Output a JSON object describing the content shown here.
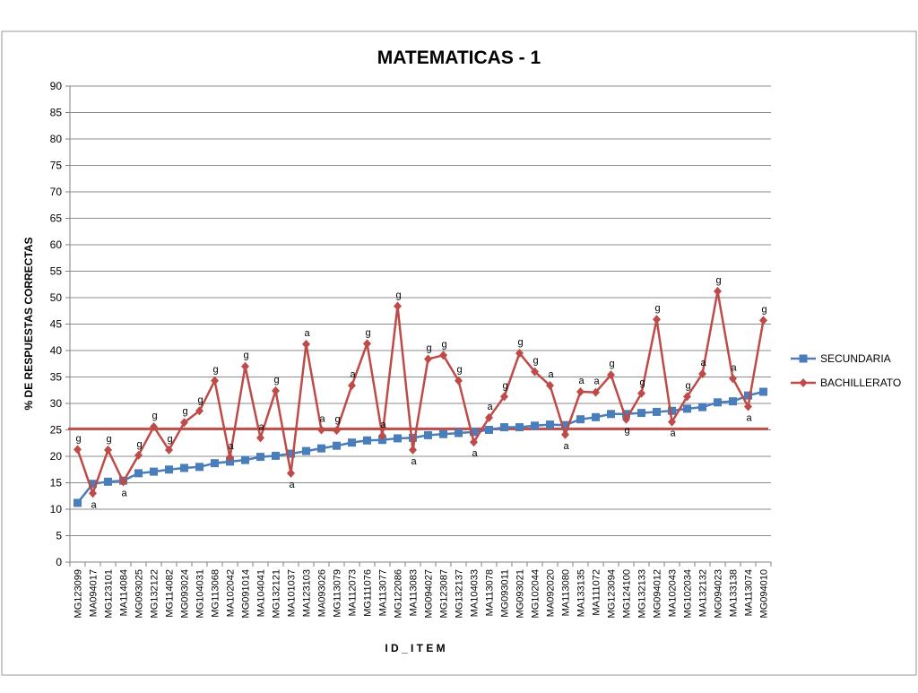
{
  "chart_data": {
    "type": "line",
    "title": "MATEMATICAS - 1",
    "xlabel": "I D _ I T E M",
    "ylabel": "% DE RESPUESTAS CORRECTAS",
    "ylim": [
      0,
      90
    ],
    "yticks": [
      0,
      5,
      10,
      15,
      20,
      25,
      30,
      35,
      40,
      45,
      50,
      55,
      60,
      65,
      70,
      75,
      80,
      85,
      90
    ],
    "grid": true,
    "legend_position": "right",
    "categories": [
      "MG123099",
      "MA094017",
      "MG123101",
      "MA114084",
      "MG093025",
      "MG132122",
      "MG114082",
      "MG093024",
      "MG104031",
      "MG113068",
      "MA102042",
      "MG091014",
      "MA104041",
      "MG132121",
      "MA101037",
      "MA123103",
      "MA093026",
      "MG113079",
      "MA112073",
      "MG111076",
      "MA113077",
      "MG122086",
      "MA113083",
      "MG094027",
      "MG123087",
      "MG132137",
      "MA104033",
      "MA113078",
      "MG093011",
      "MG093021",
      "MG102044",
      "MA092020",
      "MA113080",
      "MA133135",
      "MA111072",
      "MG123094",
      "MG124100",
      "MG132133",
      "MG094012",
      "MA102043",
      "MG102034",
      "MA132132",
      "MG094023",
      "MA133138",
      "MA113074",
      "MG094010"
    ],
    "series": [
      {
        "name": "SECUNDARIA",
        "color": "#4a7ebb",
        "marker": "square",
        "values": [
          11.2,
          14.8,
          15.2,
          15.4,
          16.8,
          17.1,
          17.5,
          17.8,
          18.0,
          18.7,
          19.0,
          19.3,
          19.9,
          20.1,
          20.5,
          21.0,
          21.5,
          22.0,
          22.6,
          23.0,
          23.1,
          23.4,
          23.5,
          24.0,
          24.2,
          24.4,
          24.6,
          25.0,
          25.5,
          25.5,
          25.8,
          26.0,
          25.9,
          27.0,
          27.4,
          28.0,
          28.0,
          28.2,
          28.4,
          28.6,
          29.0,
          29.3,
          30.2,
          30.4,
          31.5,
          32.2
        ]
      },
      {
        "name": "BACHILLERATO",
        "color": "#be4b48",
        "marker": "diamond",
        "values": [
          21.3,
          13.0,
          21.2,
          15.2,
          20.2,
          25.6,
          21.2,
          26.4,
          28.6,
          34.3,
          19.8,
          37.0,
          23.5,
          32.4,
          16.8,
          41.2,
          25.0,
          24.9,
          33.4,
          41.3,
          23.9,
          48.4,
          21.2,
          38.4,
          39.1,
          34.3,
          22.7,
          27.3,
          31.3,
          39.5,
          36.0,
          33.4,
          24.1,
          32.2,
          32.1,
          35.4,
          27.0,
          31.9,
          45.9,
          26.5,
          31.3,
          35.6,
          51.2,
          34.7,
          29.4,
          45.7
        ]
      }
    ],
    "reference_line": {
      "y": 25.2,
      "color": "#c0504d"
    },
    "point_labels": [
      "g",
      "a",
      "g",
      "a",
      "g",
      "g",
      "g",
      "g",
      "g",
      "g",
      "a",
      "g",
      "a",
      "g",
      "a",
      "a",
      "a",
      "g",
      "a",
      "g",
      "a",
      "g",
      "a",
      "g",
      "g",
      "g",
      "a",
      "a",
      "g",
      "g",
      "g",
      "a",
      "a",
      "a",
      "a",
      "g",
      "g",
      "g",
      "g",
      "a",
      "g",
      "a",
      "g",
      "a",
      "a",
      "g"
    ]
  }
}
